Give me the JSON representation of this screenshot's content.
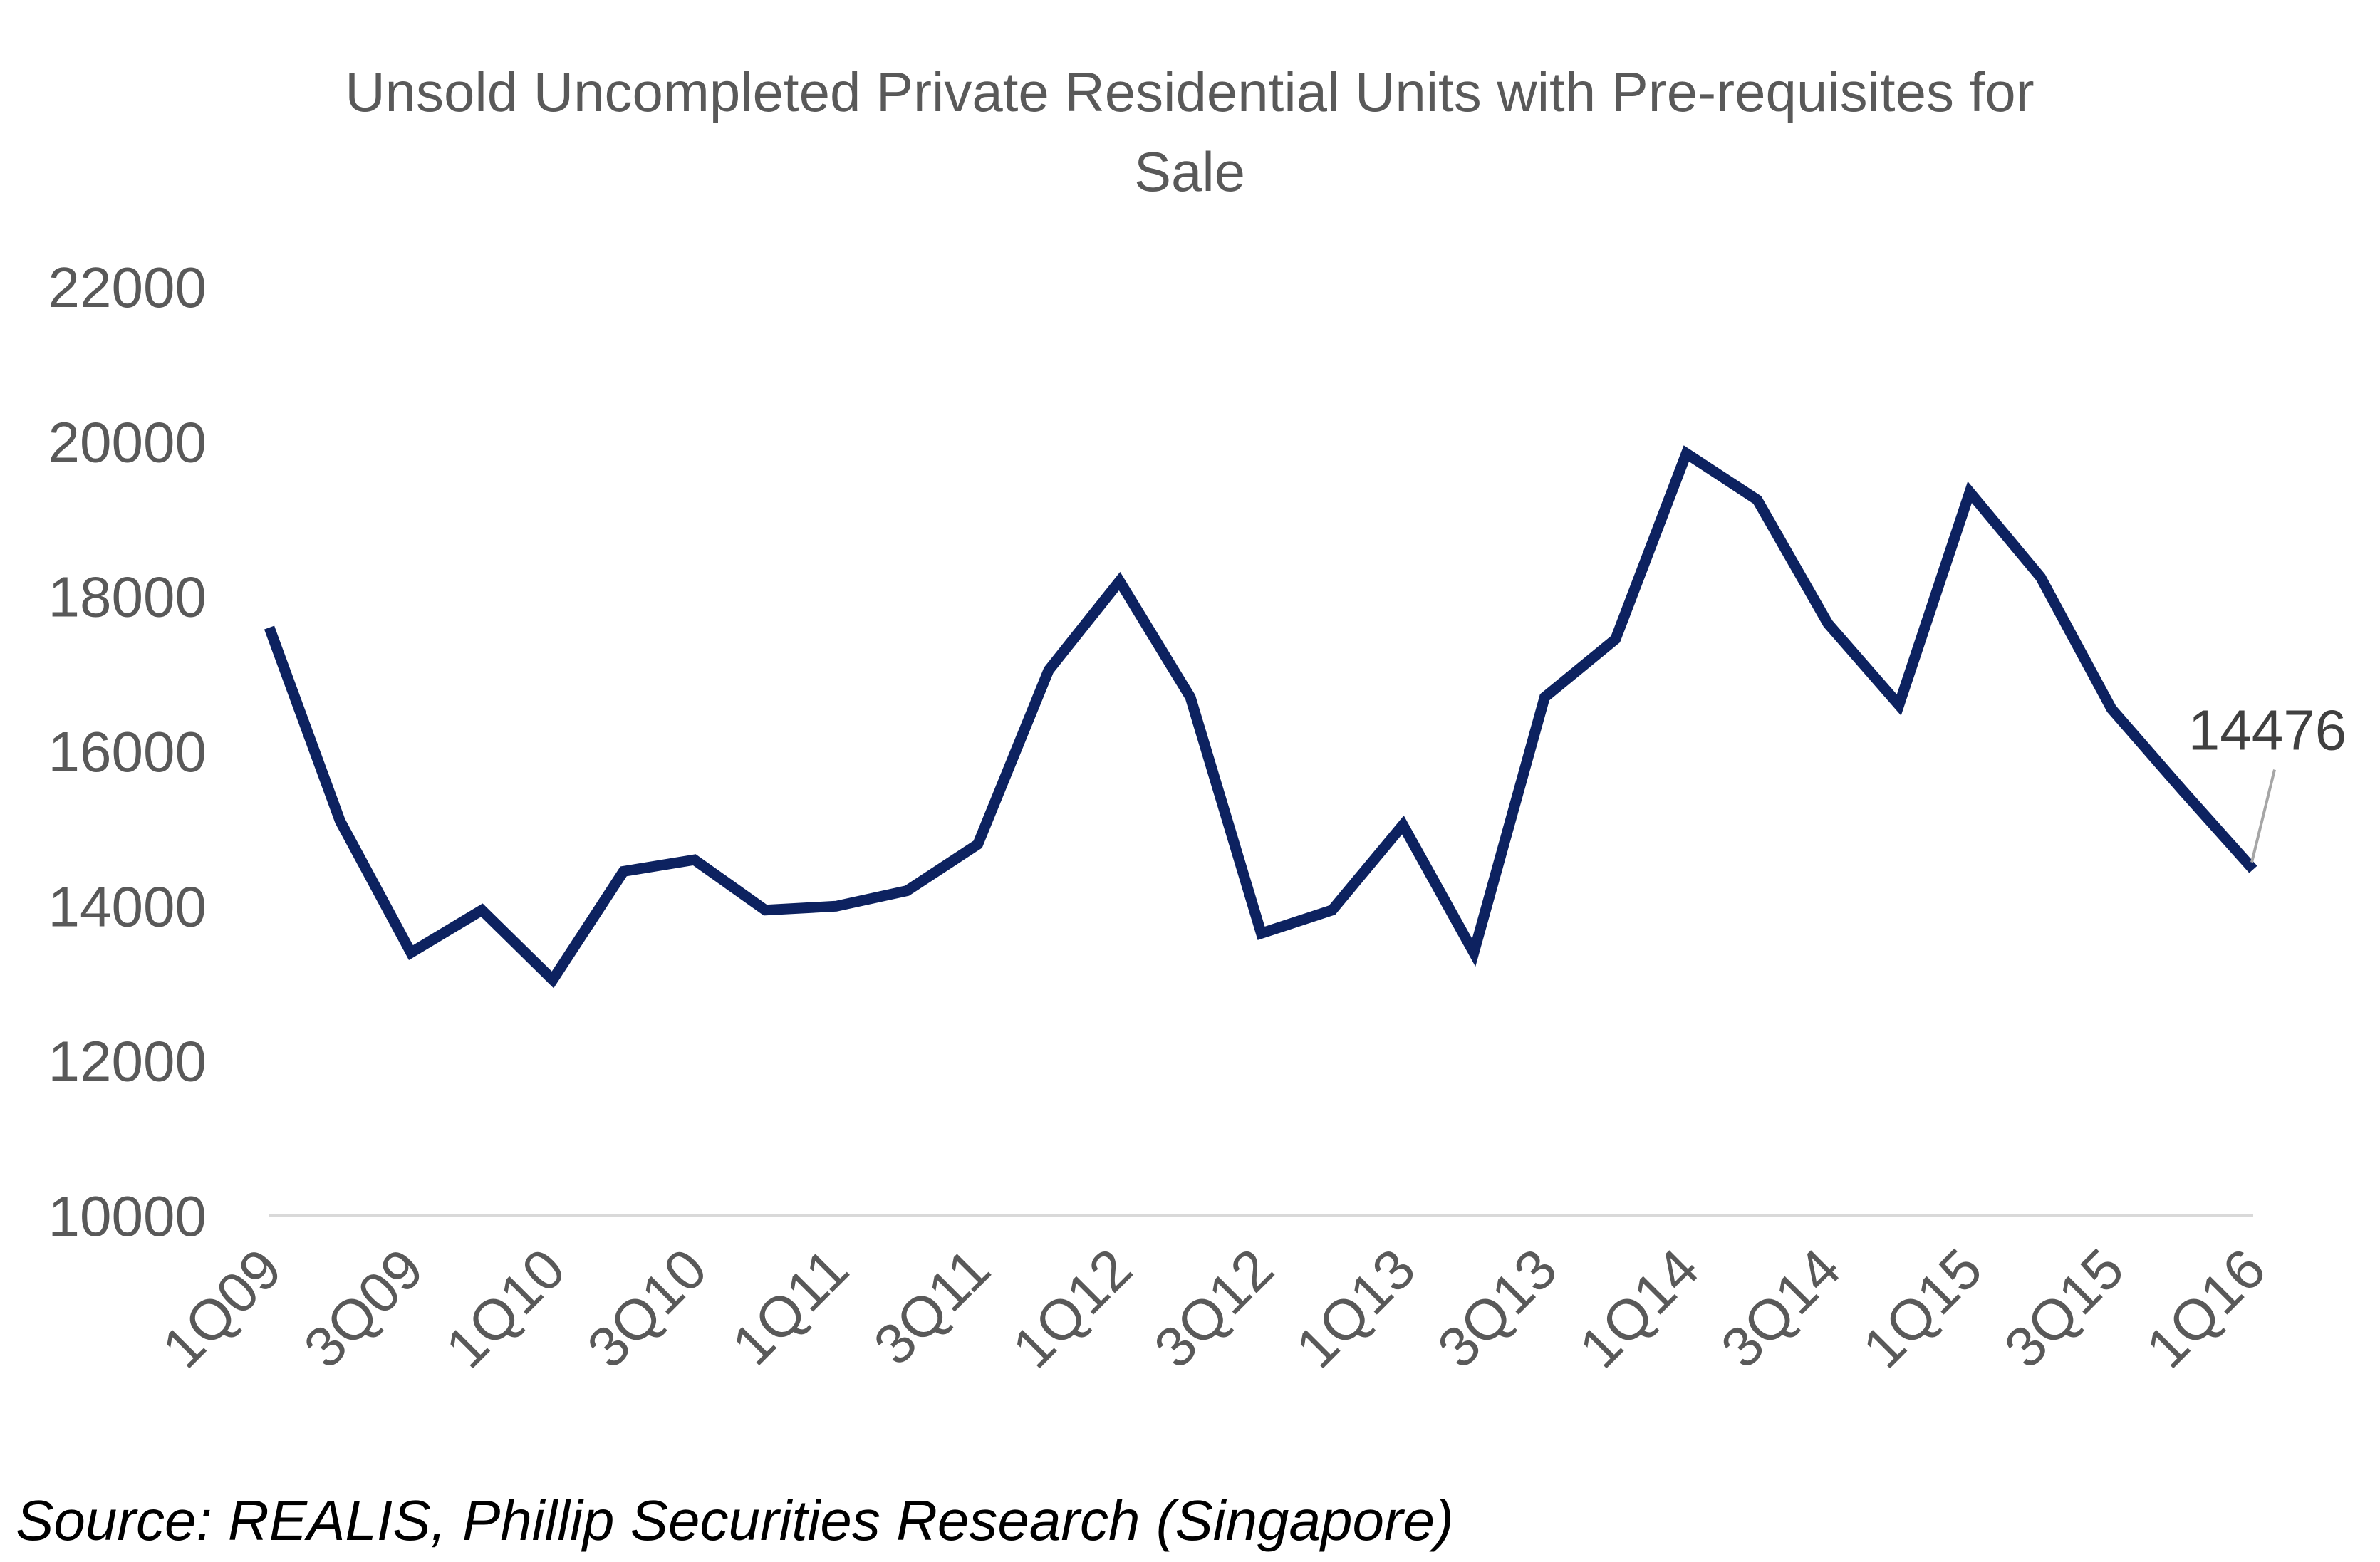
{
  "chart_data": {
    "type": "line",
    "title_lines": [
      "Unsold Uncompleted Private Residential Units with Pre-requisites for",
      "Sale"
    ],
    "xlabel": "",
    "ylabel": "",
    "x_tick_labels": [
      "1Q09",
      "3Q09",
      "1Q10",
      "3Q10",
      "1Q11",
      "3Q11",
      "1Q12",
      "3Q12",
      "1Q13",
      "3Q13",
      "1Q14",
      "3Q14",
      "1Q15",
      "3Q15",
      "1Q16"
    ],
    "y_ticks": [
      10000,
      12000,
      14000,
      16000,
      18000,
      20000,
      22000
    ],
    "ylim": [
      10000,
      22000
    ],
    "grid": false,
    "legend": "none",
    "series": [
      {
        "values": [
          17600,
          15100,
          13400,
          13950,
          13050,
          14450,
          14600,
          13950,
          14000,
          14200,
          14800,
          17050,
          18200,
          16700,
          13650,
          13950,
          15050,
          13400,
          16700,
          17450,
          19850,
          19250,
          17650,
          16600,
          19350,
          18250,
          16550,
          15500,
          14476
        ],
        "color": "#0d2260"
      }
    ],
    "data_label": {
      "text": "14476",
      "color": "#404040"
    },
    "axis_color": "#d9d9d9",
    "source_text": "Source: REALIS, Phillip Securities Research (Singapore)"
  }
}
